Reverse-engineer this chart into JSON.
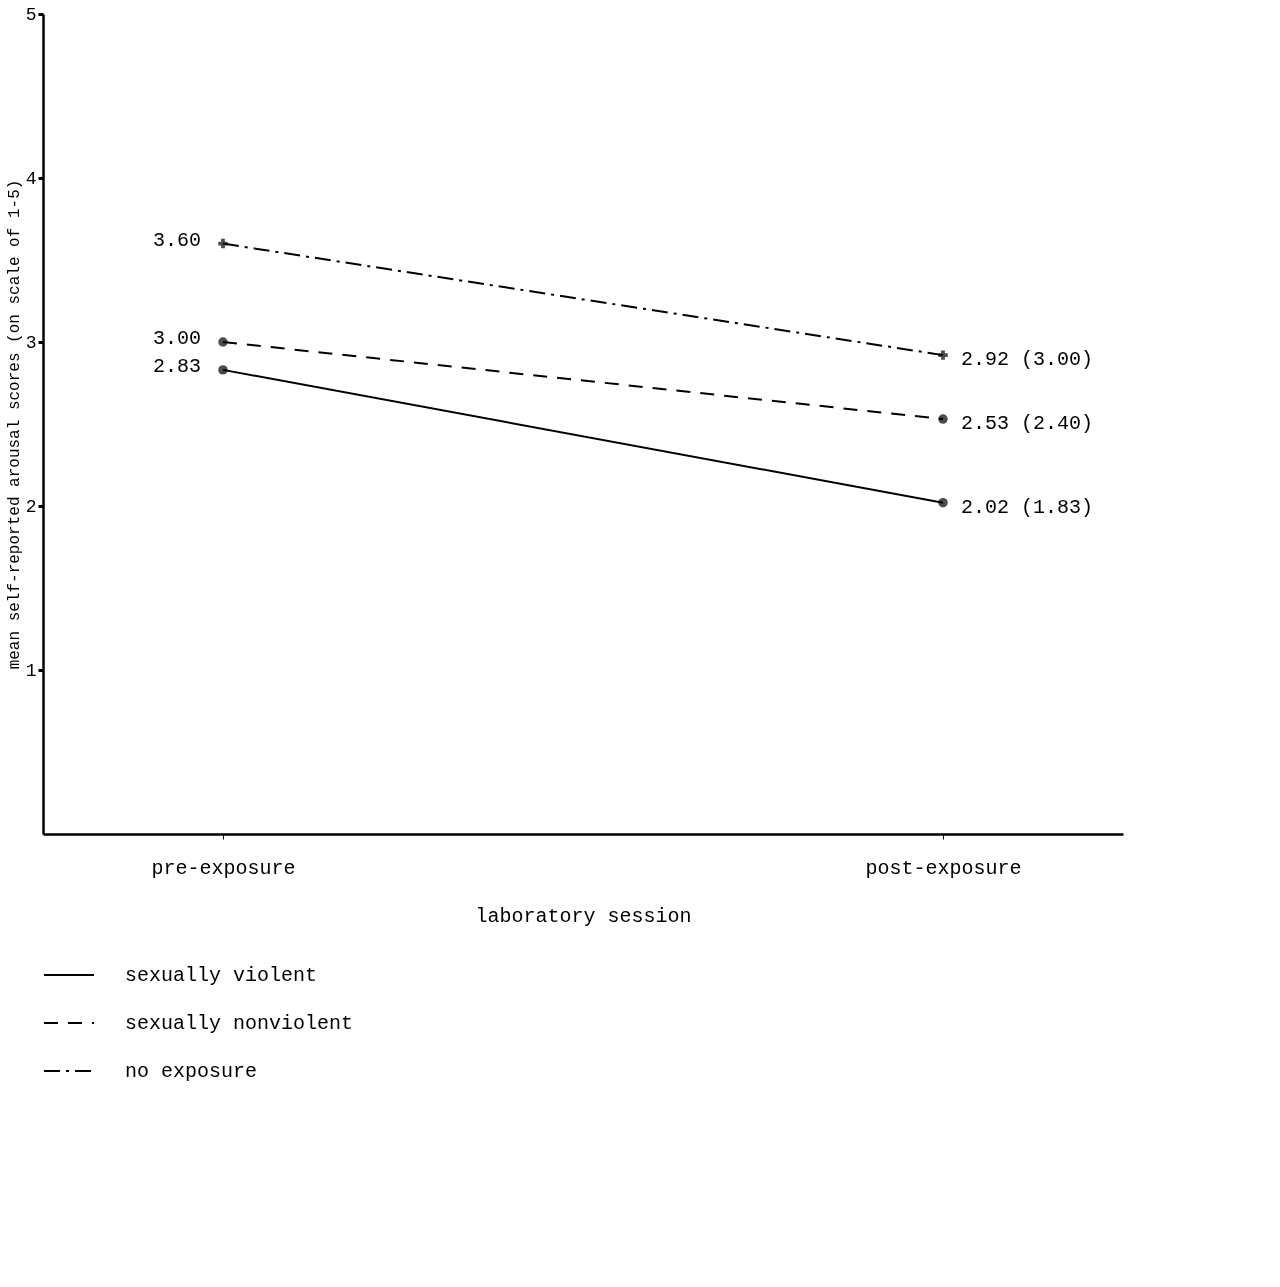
{
  "chart_data": {
    "type": "line",
    "xlabel": "laboratory session",
    "ylabel": "mean self-reported arousal scores (on scale of 1-5)",
    "categories": [
      "pre-exposure",
      "post-exposure"
    ],
    "ylim": [
      0,
      5
    ],
    "yticks": [
      1,
      2,
      3,
      4,
      5
    ],
    "grid": false,
    "legend": "bottom",
    "series": [
      {
        "name": "sexually violent",
        "color": "#000000",
        "values": [
          2.83,
          2.02
        ],
        "value_labels": [
          "2.83",
          "2.02 (1.83)"
        ],
        "marker": "circle",
        "line_style": "solid"
      },
      {
        "name": "sexually nonviolent",
        "color": "#000000",
        "values": [
          3.0,
          2.53
        ],
        "value_labels": [
          "3.00",
          "2.53 (2.40)"
        ],
        "marker": "circle",
        "line_style": "dashed"
      },
      {
        "name": "no exposure",
        "color": "#000000",
        "values": [
          3.6,
          2.92
        ],
        "value_labels": [
          "3.60",
          "2.92 (3.00)"
        ],
        "marker": "cross",
        "line_style": "dotted"
      }
    ]
  }
}
